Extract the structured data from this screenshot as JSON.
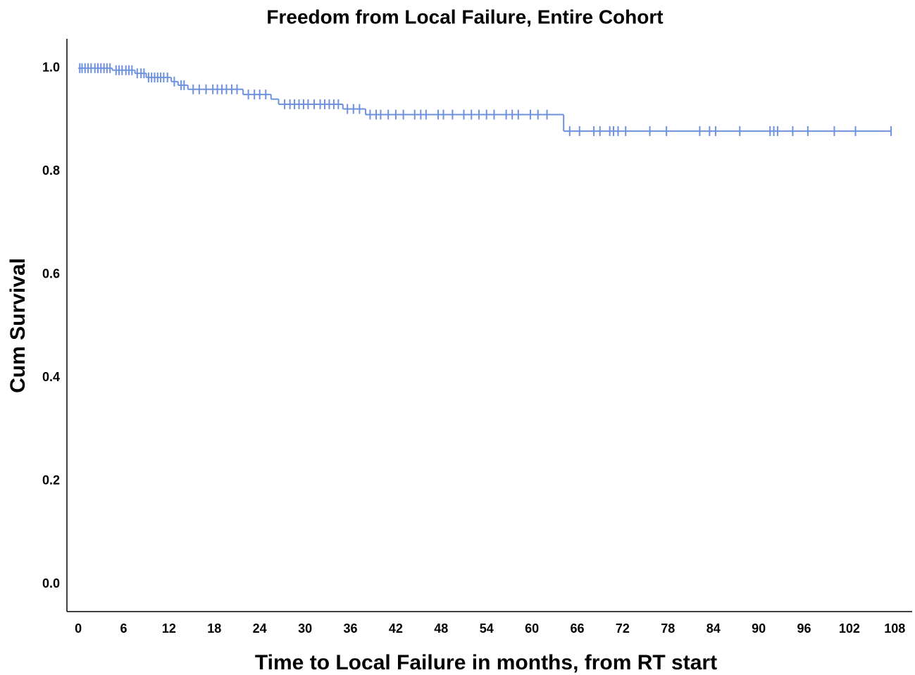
{
  "chart_data": {
    "type": "survival-step",
    "title": "Freedom from Local Failure, Entire Cohort",
    "x_label": "Time to Local Failure in months, from RT start",
    "y_label": "Cum Survival",
    "color": "#6f92dc",
    "x": [
      0,
      4.5,
      7.5,
      9,
      12.3,
      13.2,
      14.5,
      21.8,
      25.5,
      26.5,
      35,
      38,
      64.2,
      107.5
    ],
    "values": [
      1.0,
      0.996,
      0.99,
      0.982,
      0.974,
      0.967,
      0.959,
      0.949,
      0.94,
      0.93,
      0.921,
      0.91,
      0.878,
      0.878
    ],
    "censored": {
      "x": [
        0.2,
        0.5,
        0.9,
        1.3,
        1.7,
        2.2,
        2.6,
        3.0,
        3.4,
        3.8,
        4.2,
        5.0,
        5.4,
        5.8,
        6.3,
        6.7,
        7.1,
        7.8,
        8.3,
        8.7,
        9.3,
        9.7,
        10.1,
        10.5,
        10.9,
        11.3,
        11.8,
        12.7,
        13.6,
        14.0,
        15.2,
        16.0,
        16.9,
        17.8,
        18.4,
        19.0,
        19.6,
        20.3,
        21.0,
        22.5,
        23.3,
        24.0,
        24.8,
        27.3,
        28.0,
        28.6,
        29.2,
        29.8,
        30.4,
        31.2,
        32.0,
        32.6,
        33.2,
        33.8,
        34.4,
        35.6,
        36.4,
        37.2,
        38.6,
        39.4,
        40.0,
        41.0,
        42.0,
        43.0,
        44.5,
        45.3,
        46.0,
        47.6,
        48.3,
        49.5,
        51.0,
        52.0,
        53.0,
        54.0,
        55.0,
        56.6,
        57.4,
        58.2,
        59.8,
        60.8,
        62.0,
        65.0,
        66.3,
        68.2,
        69.0,
        70.3,
        70.8,
        71.4,
        72.4,
        75.6,
        77.8,
        82.2,
        83.5,
        84.3,
        87.5,
        91.5,
        92.0,
        92.5,
        94.5,
        96.5,
        100.0,
        102.8,
        107.5
      ],
      "values": [
        1.0,
        1.0,
        1.0,
        1.0,
        1.0,
        1.0,
        1.0,
        1.0,
        1.0,
        1.0,
        1.0,
        0.996,
        0.996,
        0.996,
        0.996,
        0.996,
        0.996,
        0.99,
        0.99,
        0.99,
        0.982,
        0.982,
        0.982,
        0.982,
        0.982,
        0.982,
        0.982,
        0.974,
        0.967,
        0.967,
        0.959,
        0.959,
        0.959,
        0.959,
        0.959,
        0.959,
        0.959,
        0.959,
        0.959,
        0.949,
        0.949,
        0.949,
        0.949,
        0.93,
        0.93,
        0.93,
        0.93,
        0.93,
        0.93,
        0.93,
        0.93,
        0.93,
        0.93,
        0.93,
        0.93,
        0.921,
        0.921,
        0.921,
        0.91,
        0.91,
        0.91,
        0.91,
        0.91,
        0.91,
        0.91,
        0.91,
        0.91,
        0.91,
        0.91,
        0.91,
        0.91,
        0.91,
        0.91,
        0.91,
        0.91,
        0.91,
        0.91,
        0.91,
        0.91,
        0.91,
        0.91,
        0.878,
        0.878,
        0.878,
        0.878,
        0.878,
        0.878,
        0.878,
        0.878,
        0.878,
        0.878,
        0.878,
        0.878,
        0.878,
        0.878,
        0.878,
        0.878,
        0.878,
        0.878,
        0.878,
        0.878,
        0.878,
        0.878
      ]
    },
    "xlim": [
      -1.5,
      110.3
    ],
    "ylim": [
      -0.053,
      1.057
    ],
    "xticks": [
      0,
      6,
      12,
      18,
      24,
      30,
      36,
      42,
      48,
      54,
      60,
      66,
      72,
      78,
      84,
      90,
      96,
      102,
      108
    ],
    "yticks": [
      {
        "value": 0,
        "label": "0.0"
      },
      0.2,
      0.4,
      0.6,
      0.8,
      {
        "value": 1,
        "label": "1.0"
      }
    ],
    "grid": false
  }
}
